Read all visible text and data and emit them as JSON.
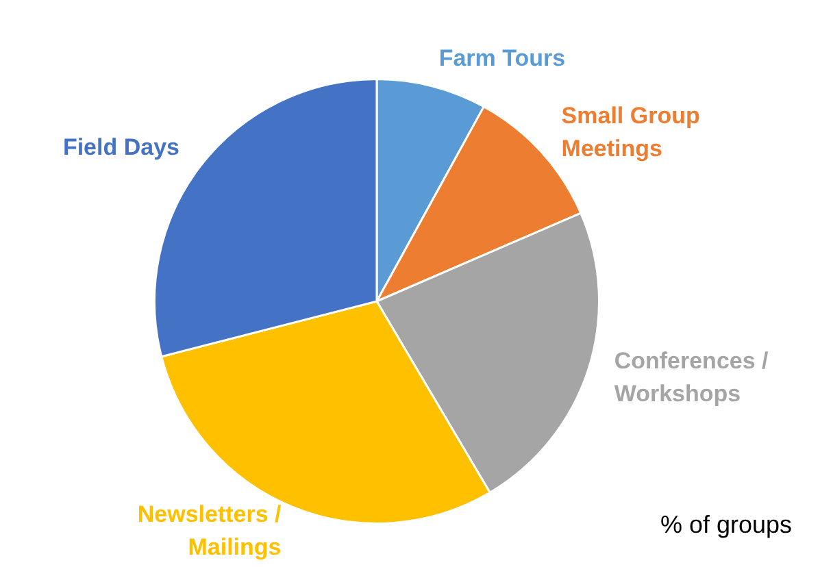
{
  "chart_data": {
    "type": "pie",
    "categories": [
      "Farm Tours",
      "Small Group Meetings",
      "Conferences / Workshops",
      "Newsletters / Mailings",
      "Field Days"
    ],
    "values": [
      8,
      10.5,
      23,
      29.5,
      29
    ],
    "colors": [
      "#5b9bd5",
      "#ed7d31",
      "#a5a5a5",
      "#ffc000",
      "#4472c4"
    ],
    "annotations": [
      "% of groups"
    ],
    "legend": false
  }
}
